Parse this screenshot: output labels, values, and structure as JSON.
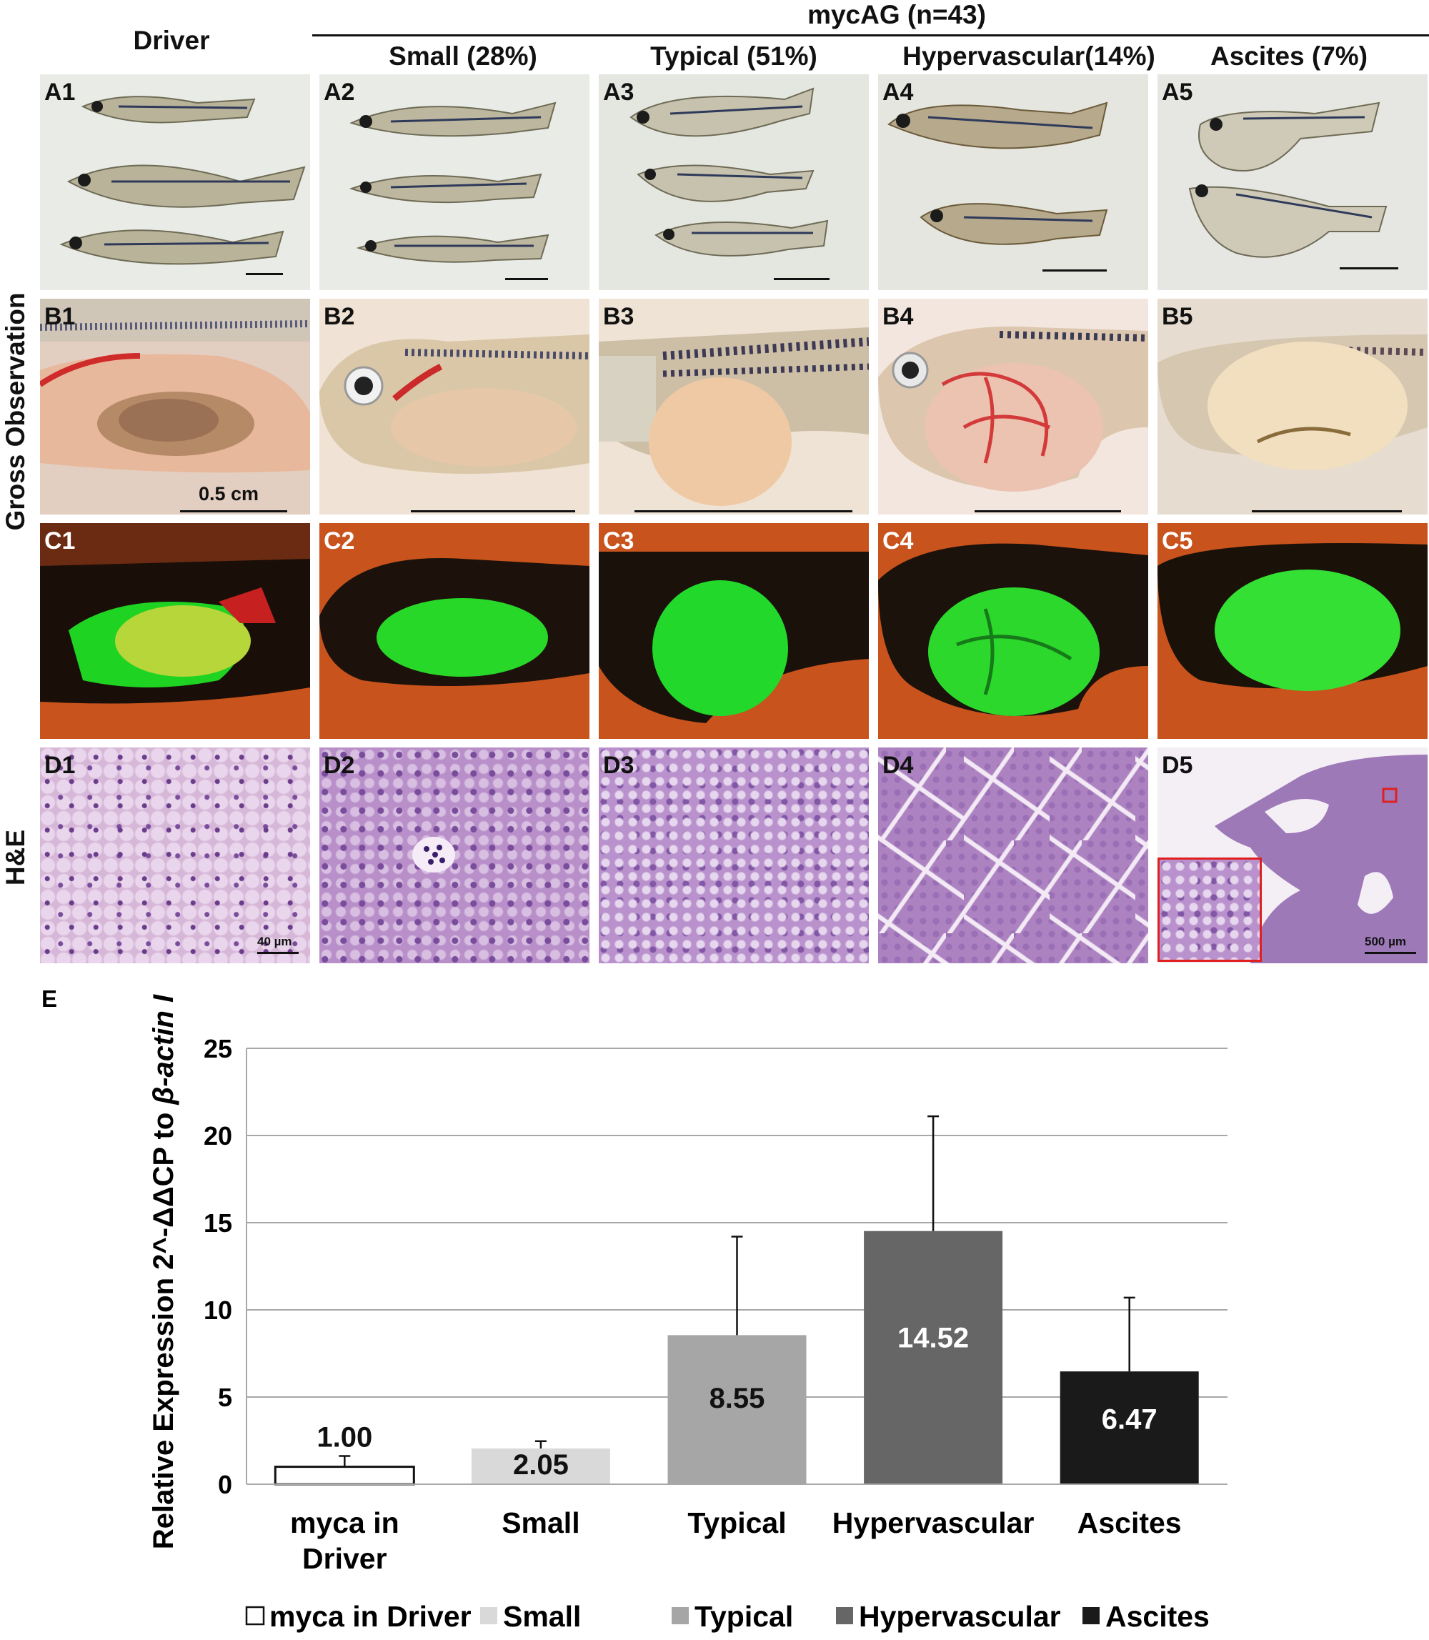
{
  "header": {
    "driver": "Driver",
    "mycag": "mycAG (n=43)",
    "groups": [
      "Small (28%)",
      "Typical (51%)",
      "Hypervascular(14%)",
      "Ascites (7%)"
    ]
  },
  "row_labels": {
    "gross": "Gross Observation",
    "he": "H&E"
  },
  "panels": {
    "A": [
      "A1",
      "A2",
      "A3",
      "A4",
      "A5"
    ],
    "B": [
      "B1",
      "B2",
      "B3",
      "B4",
      "B5"
    ],
    "C": [
      "C1",
      "C2",
      "C3",
      "C4",
      "C5"
    ],
    "D": [
      "D1",
      "D2",
      "D3",
      "D4",
      "D5"
    ]
  },
  "scale_labels": {
    "b1": "0.5 cm",
    "d1": "40 µm",
    "d5": "500 µm"
  },
  "colors": {
    "driver": "#ffffff",
    "small": "#d9d9d9",
    "typical": "#a6a6a6",
    "hypervascular": "#666666",
    "ascites": "#1a1a1a",
    "grid": "#a8a8a8",
    "fluorescence": "#2bd82b",
    "background_orange": "#c8531c"
  },
  "chart_panel_label": "E",
  "chart_data": {
    "type": "bar",
    "categories": [
      "myca in Driver",
      "Small",
      "Typical",
      "Hypervascular",
      "Ascites"
    ],
    "category_lines": [
      [
        "myca in",
        "Driver"
      ],
      [
        "Small"
      ],
      [
        "Typical"
      ],
      [
        "Hypervascular"
      ],
      [
        "Ascites"
      ]
    ],
    "values": [
      1.0,
      2.05,
      8.55,
      14.52,
      6.47
    ],
    "value_labels": [
      "1.00",
      "2.05",
      "8.55",
      "14.52",
      "6.47"
    ],
    "error_upper": [
      1.62,
      2.47,
      14.2,
      21.1,
      10.7
    ],
    "ylabel": "Relative Expression 2^-ΔΔCP to ",
    "ylabel_italic": "β-actin I",
    "ylim": [
      0,
      25
    ],
    "yticks": [
      0,
      5,
      10,
      15,
      20,
      25
    ],
    "grid": true,
    "legend": [
      "myca in Driver",
      "Small",
      "Typical",
      "Hypervascular",
      "Ascites"
    ],
    "legend_position": "bottom"
  }
}
